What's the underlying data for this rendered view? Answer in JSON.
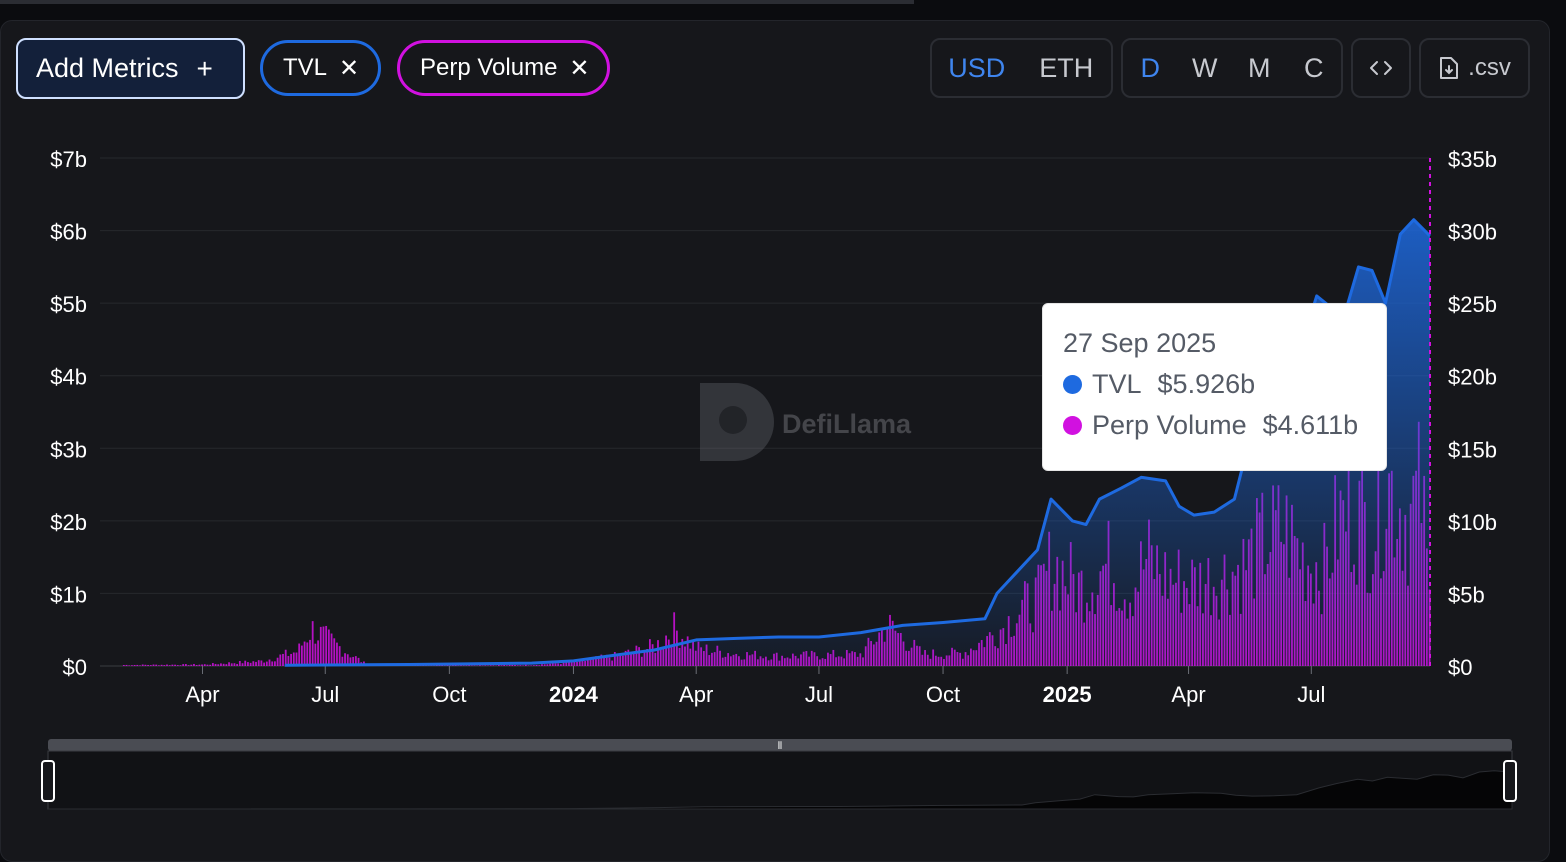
{
  "toolbar": {
    "add_metrics_label": "Add Metrics",
    "add_icon": "plus-icon",
    "close_icon": "close-icon",
    "metrics": [
      {
        "label": "TVL",
        "color": "#1e6ae0"
      },
      {
        "label": "Perp Volume",
        "color": "#d111e0"
      }
    ],
    "currencies": [
      "USD",
      "ETH"
    ],
    "active_currency": "USD",
    "periods": [
      "D",
      "W",
      "M",
      "C"
    ],
    "active_period": "D",
    "embed_icon": "code-icon",
    "csv_icon": "download-file-icon",
    "csv_label": ".csv"
  },
  "watermark": {
    "text": "DefiLlama",
    "icon": "llama-logo"
  },
  "tooltip": {
    "date": "27 Sep 2025",
    "rows": [
      {
        "name": "TVL",
        "value": "$5.926b",
        "color": "#1e6ae0"
      },
      {
        "name": "Perp Volume",
        "value": "$4.611b",
        "color": "#d111e0"
      }
    ]
  },
  "chart_data": {
    "type": "line",
    "x_start": "2023-01-15",
    "x_end": "2025-09-27",
    "x_tick_labels": [
      "Apr",
      "Jul",
      "Oct",
      "2024",
      "Apr",
      "Jul",
      "Oct",
      "2025",
      "Apr",
      "Jul"
    ],
    "x_tick_dates": [
      "2023-04-01",
      "2023-07-01",
      "2023-10-01",
      "2024-01-01",
      "2024-04-01",
      "2024-07-01",
      "2024-10-01",
      "2025-01-01",
      "2025-04-01",
      "2025-07-01"
    ],
    "y_left": {
      "ticks": [
        "$0",
        "$1b",
        "$2b",
        "$3b",
        "$4b",
        "$5b",
        "$6b",
        "$7b"
      ],
      "ylim": [
        0,
        7
      ]
    },
    "y_right": {
      "ticks": [
        "$0",
        "$5b",
        "$10b",
        "$15b",
        "$20b",
        "$25b",
        "$30b",
        "$35b"
      ],
      "ylim": [
        0,
        35
      ]
    },
    "grid": true,
    "series": [
      {
        "name": "TVL",
        "axis": "left",
        "color": "#1e6ae0",
        "points": [
          [
            "2023-06-01",
            0.01
          ],
          [
            "2023-09-01",
            0.02
          ],
          [
            "2023-12-01",
            0.04
          ],
          [
            "2024-01-01",
            0.07
          ],
          [
            "2024-02-01",
            0.15
          ],
          [
            "2024-03-01",
            0.22
          ],
          [
            "2024-04-01",
            0.36
          ],
          [
            "2024-05-01",
            0.38
          ],
          [
            "2024-06-01",
            0.4
          ],
          [
            "2024-07-01",
            0.4
          ],
          [
            "2024-08-01",
            0.46
          ],
          [
            "2024-09-01",
            0.56
          ],
          [
            "2024-10-01",
            0.6
          ],
          [
            "2024-11-01",
            0.65
          ],
          [
            "2024-11-10",
            1.0
          ],
          [
            "2024-11-25",
            1.3
          ],
          [
            "2024-12-10",
            1.6
          ],
          [
            "2024-12-20",
            2.3
          ],
          [
            "2025-01-05",
            2.0
          ],
          [
            "2025-01-15",
            1.95
          ],
          [
            "2025-01-25",
            2.3
          ],
          [
            "2025-02-10",
            2.45
          ],
          [
            "2025-02-25",
            2.6
          ],
          [
            "2025-03-15",
            2.55
          ],
          [
            "2025-03-25",
            2.2
          ],
          [
            "2025-04-05",
            2.08
          ],
          [
            "2025-04-20",
            2.12
          ],
          [
            "2025-05-05",
            2.3
          ],
          [
            "2025-05-20",
            3.4
          ],
          [
            "2025-06-01",
            4.1
          ],
          [
            "2025-06-15",
            4.8
          ],
          [
            "2025-06-25",
            4.5
          ],
          [
            "2025-07-05",
            5.1
          ],
          [
            "2025-07-15",
            4.95
          ],
          [
            "2025-07-25",
            4.8
          ],
          [
            "2025-08-05",
            5.5
          ],
          [
            "2025-08-15",
            5.45
          ],
          [
            "2025-08-25",
            5.0
          ],
          [
            "2025-09-05",
            5.95
          ],
          [
            "2025-09-15",
            6.15
          ],
          [
            "2025-09-27",
            5.926
          ]
        ]
      },
      {
        "name": "Perp Volume",
        "axis": "right",
        "type": "bar",
        "color": "#d111e0",
        "points": [
          [
            "2023-02-01",
            0.1
          ],
          [
            "2023-04-01",
            0.15
          ],
          [
            "2023-05-15",
            0.5
          ],
          [
            "2023-06-10",
            1.5
          ],
          [
            "2023-06-20",
            3.8
          ],
          [
            "2023-08-01",
            0.05
          ],
          [
            "2023-10-01",
            0.05
          ],
          [
            "2023-12-01",
            0.1
          ],
          [
            "2024-01-01",
            0.4
          ],
          [
            "2024-02-01",
            1.0
          ],
          [
            "2024-03-01",
            2.0
          ],
          [
            "2024-03-15",
            3.8
          ],
          [
            "2024-04-01",
            1.8
          ],
          [
            "2024-05-01",
            1.2
          ],
          [
            "2024-06-01",
            1.0
          ],
          [
            "2024-07-01",
            1.1
          ],
          [
            "2024-08-01",
            1.2
          ],
          [
            "2024-08-20",
            4.2
          ],
          [
            "2024-09-15",
            1.2
          ],
          [
            "2024-10-15",
            1.3
          ],
          [
            "2024-11-10",
            3.5
          ],
          [
            "2024-11-25",
            5.5
          ],
          [
            "2024-12-10",
            7.0
          ],
          [
            "2024-12-20",
            10.5
          ],
          [
            "2025-01-10",
            8.0
          ],
          [
            "2025-02-01",
            10.5
          ],
          [
            "2025-02-15",
            7.5
          ],
          [
            "2025-03-01",
            11.0
          ],
          [
            "2025-03-15",
            9.0
          ],
          [
            "2025-04-05",
            8.5
          ],
          [
            "2025-04-20",
            9.0
          ],
          [
            "2025-05-10",
            10.0
          ],
          [
            "2025-05-25",
            12.5
          ],
          [
            "2025-06-10",
            14.0
          ],
          [
            "2025-06-25",
            11.0
          ],
          [
            "2025-07-10",
            10.0
          ],
          [
            "2025-07-20",
            14.5
          ],
          [
            "2025-08-01",
            16.0
          ],
          [
            "2025-08-15",
            13.5
          ],
          [
            "2025-08-25",
            19.0
          ],
          [
            "2025-09-10",
            15.0
          ],
          [
            "2025-09-20",
            18.0
          ],
          [
            "2025-09-27",
            4.611
          ]
        ]
      }
    ]
  }
}
